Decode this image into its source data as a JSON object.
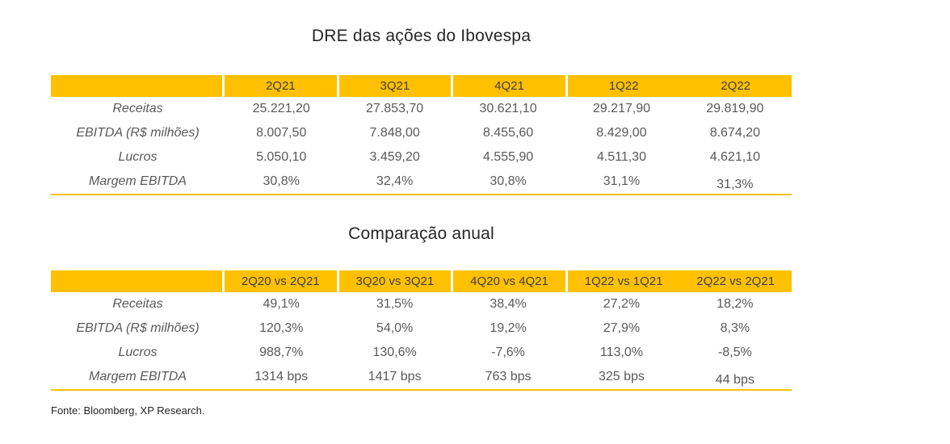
{
  "colors": {
    "accent": "#FFC000",
    "header_text": "#404040",
    "body_text": "#595959",
    "title_text": "#262626"
  },
  "table1": {
    "title": "DRE das ações do Ibovespa",
    "columns": [
      "2Q21",
      "3Q21",
      "4Q21",
      "1Q22",
      "2Q22"
    ],
    "rows": [
      {
        "label": "Receitas",
        "values": [
          "25.221,20",
          "27.853,70",
          "30.621,10",
          "29.217,90",
          "29.819,90"
        ]
      },
      {
        "label": "EBITDA (R$ milhões)",
        "values": [
          "8.007,50",
          "7.848,00",
          "8.455,60",
          "8.429,00",
          "8.674,20"
        ]
      },
      {
        "label": "Lucros",
        "values": [
          "5.050,10",
          "3.459,20",
          "4.555,90",
          "4.511,30",
          "4.621,10"
        ]
      },
      {
        "label": "Margem EBITDA",
        "values": [
          "30,8%",
          "32,4%",
          "30,8%",
          "31,1%",
          "31,3%"
        ]
      }
    ]
  },
  "table2": {
    "title": "Comparação anual",
    "columns": [
      "2Q20 vs 2Q21",
      "3Q20 vs 3Q21",
      "4Q20 vs 4Q21",
      "1Q22 vs 1Q21",
      "2Q22 vs 2Q21"
    ],
    "rows": [
      {
        "label": "Receitas",
        "values": [
          "49,1%",
          "31,5%",
          "38,4%",
          "27,2%",
          "18,2%"
        ]
      },
      {
        "label": "EBITDA (R$ milhões)",
        "values": [
          "120,3%",
          "54,0%",
          "19,2%",
          "27,9%",
          "8,3%"
        ]
      },
      {
        "label": "Lucros",
        "values": [
          "988,7%",
          "130,6%",
          "-7,6%",
          "113,0%",
          "-8,5%"
        ]
      },
      {
        "label": "Margem EBITDA",
        "values": [
          "1314 bps",
          "1417 bps",
          "763 bps",
          "325 bps",
          "44 bps"
        ]
      }
    ]
  },
  "footer": {
    "source": "Fonte: Bloomberg, XP Research."
  }
}
